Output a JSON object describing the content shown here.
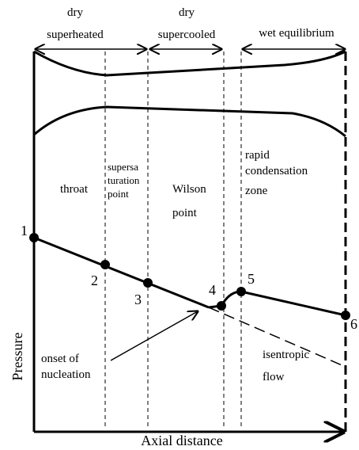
{
  "zones": {
    "superheated": [
      "dry",
      "superheated"
    ],
    "supercooled": [
      "dry",
      "supercooled"
    ],
    "wet": "wet equilibrium"
  },
  "regions": {
    "throat": "throat",
    "supersaturation": [
      "supersa",
      "turation",
      "point"
    ],
    "wilson": [
      "Wilson",
      "point"
    ],
    "rapid": [
      "rapid",
      "condensation",
      "zone"
    ]
  },
  "points": [
    "1",
    "2",
    "3",
    "4",
    "5",
    "6"
  ],
  "annotations": {
    "onset": [
      "onset of",
      "nucleation"
    ],
    "isentropic": [
      "isentropic",
      "flow"
    ]
  },
  "axes": {
    "y": "Pressure",
    "x": "Axial distance"
  }
}
